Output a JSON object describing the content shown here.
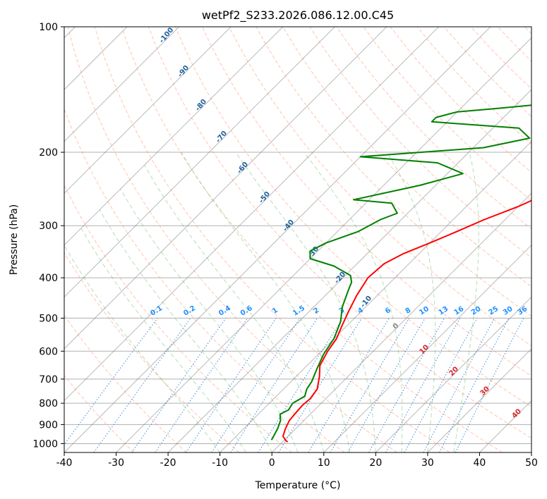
{
  "chart_data": {
    "type": "line",
    "title": "wetPf2_S233.2026.086.12.00.C45",
    "xlabel": "Temperature (°C)",
    "ylabel": "Pressure (hPa)",
    "xlim": [
      -40,
      50
    ],
    "ylim": [
      1050,
      100
    ],
    "x_ticks": [
      "-40",
      "-30",
      "-20",
      "-10",
      "0",
      "10",
      "20",
      "30",
      "40",
      "50"
    ],
    "y_ticks": [
      "100",
      "200",
      "300",
      "400",
      "500",
      "600",
      "700",
      "800",
      "900",
      "1000"
    ],
    "colors": {
      "temperature": "#ff0000",
      "dewpoint": "#008000",
      "dry_adiabat": "#ff7f50",
      "moist_adiabat": "#2ca02c",
      "mixing_ratio": "#1f78d0",
      "isotherm": "#808080",
      "potential_temp_label": "#1f5f9e",
      "equiv_label": "#d62728",
      "mixing_label": "#1e90ff"
    },
    "series": [
      {
        "name": "Temperature",
        "values": [
          [
            1,
            990
          ],
          [
            0.5,
            985
          ],
          [
            -1,
            960
          ],
          [
            -2,
            920
          ],
          [
            -2.8,
            880
          ],
          [
            -3,
            850
          ],
          [
            -3.2,
            810
          ],
          [
            -3,
            780
          ],
          [
            -3.5,
            740
          ],
          [
            -5.5,
            690
          ],
          [
            -7.5,
            650
          ],
          [
            -8.8,
            600
          ],
          [
            -9.5,
            560
          ],
          [
            -11,
            520
          ],
          [
            -12.5,
            480
          ],
          [
            -14,
            440
          ],
          [
            -15.2,
            400
          ],
          [
            -14.8,
            370
          ],
          [
            -13,
            350
          ],
          [
            -10,
            330
          ],
          [
            -7,
            310
          ],
          [
            -4,
            290
          ],
          [
            0,
            270
          ],
          [
            5,
            240
          ],
          [
            9,
            220
          ],
          [
            12,
            205
          ],
          [
            14,
            190
          ],
          [
            17,
            175
          ],
          [
            20,
            163
          ],
          [
            24,
            150
          ],
          [
            26.5,
            140
          ],
          [
            28,
            130
          ],
          [
            29.5,
            118
          ],
          [
            31.5,
            110
          ],
          [
            32.5,
            104
          ],
          [
            33,
            100
          ]
        ]
      },
      {
        "name": "Dewpoint",
        "values": [
          [
            -2.5,
            980
          ],
          [
            -2.8,
            960
          ],
          [
            -3.5,
            920
          ],
          [
            -4.5,
            880
          ],
          [
            -5.8,
            850
          ],
          [
            -5,
            830
          ],
          [
            -5.5,
            800
          ],
          [
            -4.5,
            770
          ],
          [
            -5.5,
            740
          ],
          [
            -6,
            710
          ],
          [
            -7.5,
            660
          ],
          [
            -9,
            610
          ],
          [
            -10,
            560
          ],
          [
            -12,
            510
          ],
          [
            -14.5,
            470
          ],
          [
            -16.5,
            430
          ],
          [
            -17.5,
            410
          ],
          [
            -19,
            395
          ],
          [
            -24,
            375
          ],
          [
            -30,
            360
          ],
          [
            -31.5,
            345
          ],
          [
            -30,
            330
          ],
          [
            -26,
            310
          ],
          [
            -24,
            290
          ],
          [
            -22,
            280
          ],
          [
            -25,
            265
          ],
          [
            -33,
            260
          ],
          [
            -23,
            240
          ],
          [
            -17,
            225
          ],
          [
            -24,
            212
          ],
          [
            -40,
            205
          ],
          [
            -18,
            195
          ],
          [
            -11,
            185
          ],
          [
            -15,
            175
          ],
          [
            -33,
            169
          ],
          [
            -33,
            165
          ],
          [
            -30,
            160
          ],
          [
            -23,
            157
          ],
          [
            -8,
            150
          ],
          [
            -4,
            140
          ],
          [
            -1,
            130
          ],
          [
            1,
            120
          ],
          [
            0.5,
            110
          ],
          [
            0,
            104
          ],
          [
            -0.5,
            100
          ]
        ]
      }
    ],
    "annotations": {
      "potential_temp_labels": [
        "-100",
        "-90",
        "-80",
        "-70",
        "-60",
        "-50",
        "-40",
        "-30",
        "-20",
        "-10"
      ],
      "mixing_ratio_labels": [
        "0.1",
        "0.2",
        "0.4",
        "0.6",
        "1",
        "1.5",
        "2",
        "3",
        "4",
        "6",
        "8",
        "10",
        "13",
        "16",
        "20",
        "25",
        "30",
        "36"
      ],
      "equiv_labels": [
        "0",
        "10",
        "20",
        "30",
        "40"
      ]
    }
  }
}
